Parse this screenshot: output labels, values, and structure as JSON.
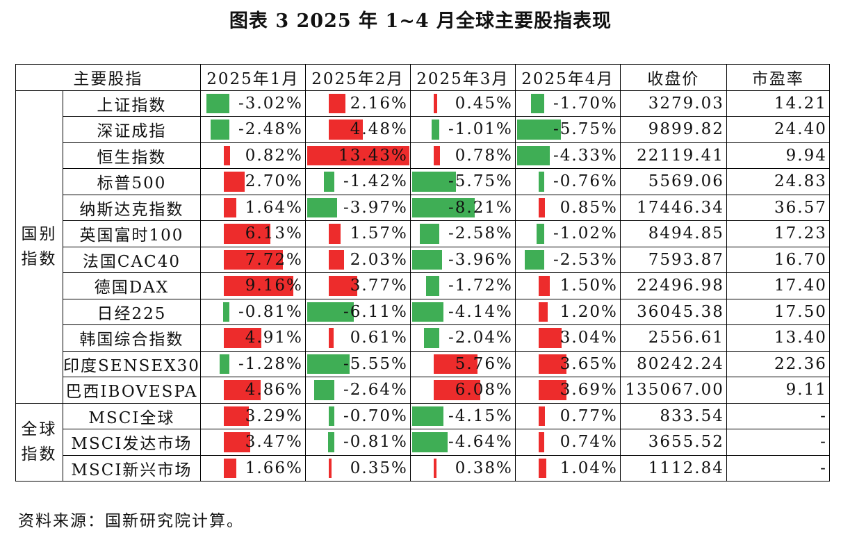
{
  "title": "图表 3  2025 年 1~4 月全球主要股指表现",
  "headers": [
    "主要股指",
    "2025年1月",
    "2025年2月",
    "2025年3月",
    "2025年4月",
    "收盘价",
    "市盈率"
  ],
  "colors": {
    "positive": "#ed2c2c",
    "negative": "#3fae55"
  },
  "groups": [
    {
      "label": "国别\n指数",
      "rows": 12
    },
    {
      "label": "全球\n指数",
      "rows": 3
    }
  ],
  "rows": [
    {
      "name": "上证指数",
      "m1": "-3.02%",
      "m2": "2.16%",
      "m3": "0.45%",
      "m4": "-1.70%",
      "close": "3279.03",
      "pe": "14.21"
    },
    {
      "name": "深证成指",
      "m1": "-2.48%",
      "m2": "4.48%",
      "m3": "-1.01%",
      "m4": "-5.75%",
      "close": "9899.82",
      "pe": "24.40"
    },
    {
      "name": "恒生指数",
      "m1": "0.82%",
      "m2": "13.43%",
      "m3": "0.78%",
      "m4": "-4.33%",
      "close": "22119.41",
      "pe": "9.94"
    },
    {
      "name": "标普500",
      "m1": "2.70%",
      "m2": "-1.42%",
      "m3": "-5.75%",
      "m4": "-0.76%",
      "close": "5569.06",
      "pe": "24.83"
    },
    {
      "name": "纳斯达克指数",
      "m1": "1.64%",
      "m2": "-3.97%",
      "m3": "-8.21%",
      "m4": "0.85%",
      "close": "17446.34",
      "pe": "36.57"
    },
    {
      "name": "英国富时100",
      "m1": "6.13%",
      "m2": "1.57%",
      "m3": "-2.58%",
      "m4": "-1.02%",
      "close": "8494.85",
      "pe": "17.23"
    },
    {
      "name": "法国CAC40",
      "m1": "7.72%",
      "m2": "2.03%",
      "m3": "-3.96%",
      "m4": "-2.53%",
      "close": "7593.87",
      "pe": "16.70"
    },
    {
      "name": "德国DAX",
      "m1": "9.16%",
      "m2": "3.77%",
      "m3": "-1.72%",
      "m4": "1.50%",
      "close": "22496.98",
      "pe": "17.40"
    },
    {
      "name": "日经225",
      "m1": "-0.81%",
      "m2": "-6.11%",
      "m3": "-4.14%",
      "m4": "1.20%",
      "close": "36045.38",
      "pe": "17.50"
    },
    {
      "name": "韩国综合指数",
      "m1": "4.91%",
      "m2": "0.61%",
      "m3": "-2.04%",
      "m4": "3.04%",
      "close": "2556.61",
      "pe": "13.40"
    },
    {
      "name": "印度SENSEX30",
      "m1": "-1.28%",
      "m2": "-5.55%",
      "m3": "5.76%",
      "m4": "3.65%",
      "close": "80242.24",
      "pe": "22.36"
    },
    {
      "name": "巴西IBOVESPA",
      "m1": "4.86%",
      "m2": "-2.64%",
      "m3": "6.08%",
      "m4": "3.69%",
      "close": "135067.00",
      "pe": "9.11"
    },
    {
      "name": "MSCI全球",
      "m1": "3.29%",
      "m2": "-0.70%",
      "m3": "-4.15%",
      "m4": "0.77%",
      "close": "833.54",
      "pe": "-"
    },
    {
      "name": "MSCI发达市场",
      "m1": "3.47%",
      "m2": "-0.81%",
      "m3": "-4.64%",
      "m4": "0.74%",
      "close": "3655.52",
      "pe": "-"
    },
    {
      "name": "MSCI新兴市场",
      "m1": "1.66%",
      "m2": "0.35%",
      "m3": "0.38%",
      "m4": "1.04%",
      "close": "1112.84",
      "pe": "-"
    }
  ],
  "source": "资料来源：国新研究院计算。"
}
